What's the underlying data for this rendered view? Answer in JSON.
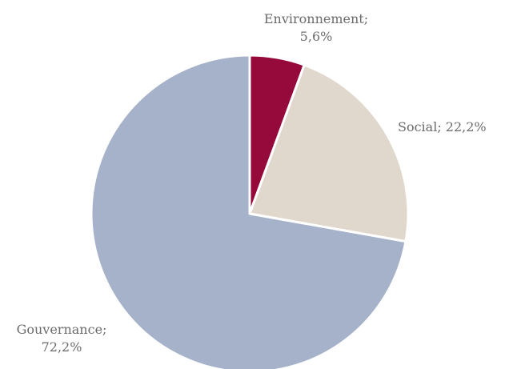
{
  "chart_data": {
    "type": "pie",
    "title": "",
    "start_angle_deg": 0,
    "direction": "clockwise",
    "slices": [
      {
        "name": "Environnement",
        "value": 5.6,
        "color": "#960a3b",
        "label_lines": [
          "Environnement;",
          "5,6%"
        ]
      },
      {
        "name": "Social",
        "value": 22.2,
        "color": "#e0d8cc",
        "label_lines": [
          "Social; 22,2%"
        ]
      },
      {
        "name": "Gouvernance",
        "value": 72.2,
        "color": "#a5b2c9",
        "label_lines": [
          "Gouvernance;",
          "72,2%"
        ]
      }
    ],
    "slice_border_color": "#ffffff"
  }
}
